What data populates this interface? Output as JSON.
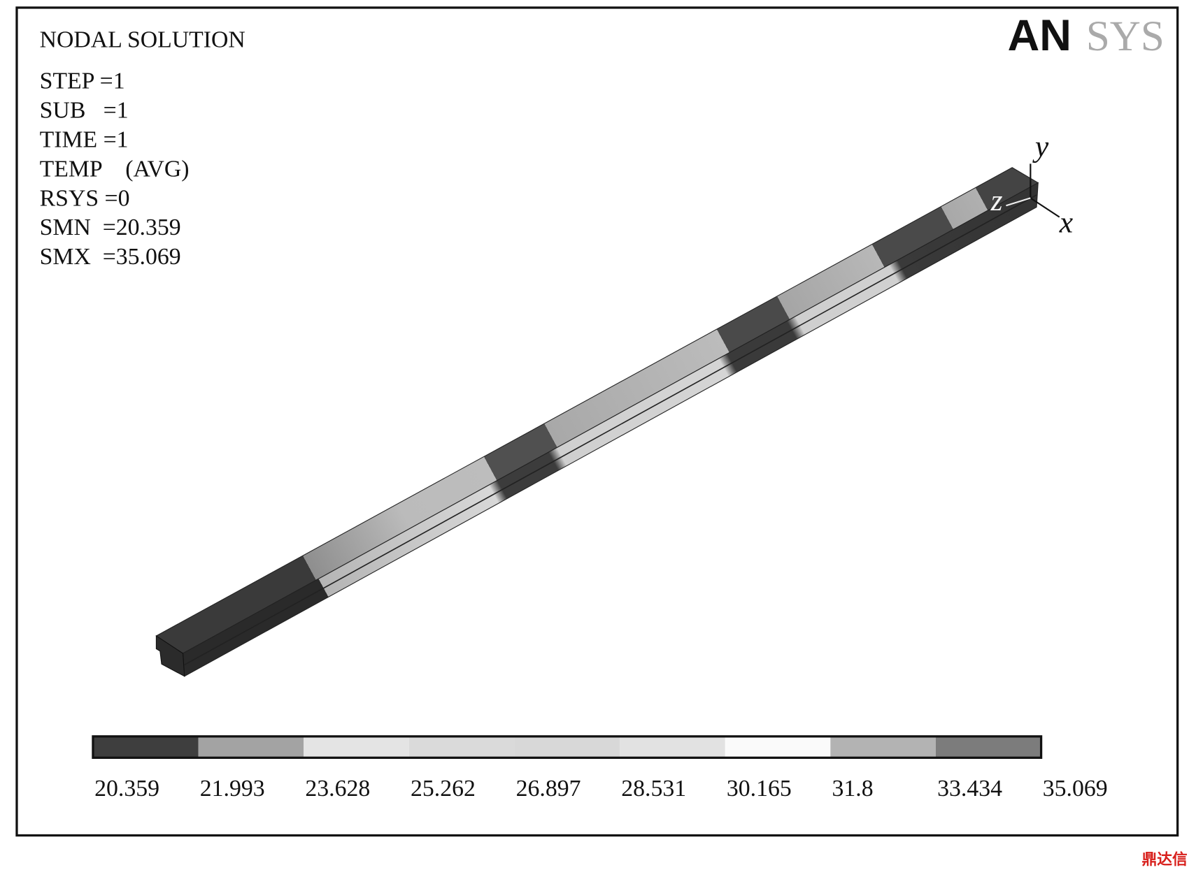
{
  "header": {
    "title": "NODAL SOLUTION",
    "logo_primary": "AN",
    "logo_secondary": "SYS"
  },
  "info_lines": [
    "STEP =1",
    "SUB   =1",
    "TIME =1",
    "TEMP    (AVG)",
    "RSYS =0",
    "SMN  =20.359",
    "SMX  =35.069"
  ],
  "axes": {
    "y": "y",
    "z": "z",
    "x": "x"
  },
  "legend": {
    "labels": [
      "20.359",
      "21.993",
      "23.628",
      "25.262",
      "26.897",
      "28.531",
      "30.165",
      "31.8",
      "33.434",
      "35.069"
    ],
    "colors": [
      "#3e3e3e",
      "#a3a3a3",
      "#e4e4e4",
      "#dadada",
      "#d8d8d8",
      "#e2e2e2",
      "#fafafa",
      "#b3b3b3",
      "#7c7c7c"
    ]
  },
  "watermark": "鼎达信"
}
